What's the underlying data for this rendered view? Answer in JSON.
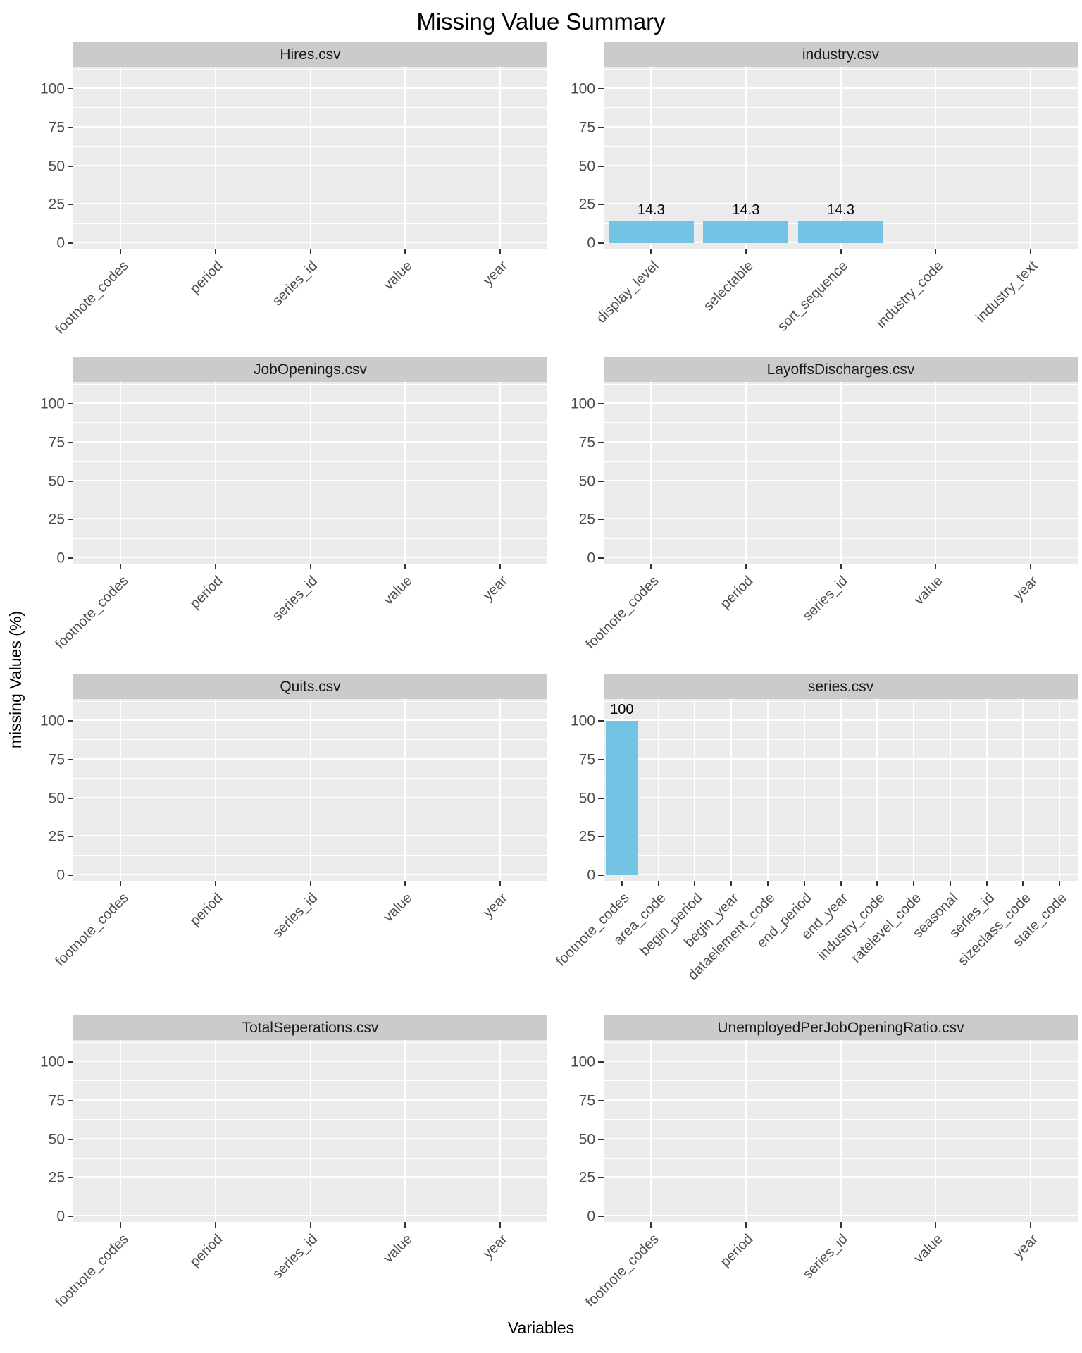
{
  "title": "Missing Value Summary",
  "xlabel": "Variables",
  "ylabel": "missing Values (%)",
  "colors": {
    "bar_fill": "#74C3E4",
    "strip_bg": "#CBCBCB",
    "panel_bg": "#EBEBEB",
    "gridline": "#FFFFFF",
    "axis_text": "#4d4d4d",
    "tick_mark": "#333333",
    "title_text": "#000000"
  },
  "y_ticks": [
    0,
    25,
    50,
    75,
    100
  ],
  "chart_data": {
    "type": "bar",
    "title": "Missing Value Summary",
    "xlabel": "Variables",
    "ylabel": "missing Values (%)",
    "ylim": [
      0,
      100
    ],
    "grid": true,
    "legend": false,
    "facets": [
      {
        "name": "Hires.csv",
        "categories": [
          "footnote_codes",
          "period",
          "series_id",
          "value",
          "year"
        ],
        "values": [
          0,
          0,
          0,
          0,
          0
        ],
        "bar_labels": [
          "",
          "",
          "",
          "",
          ""
        ]
      },
      {
        "name": "industry.csv",
        "categories": [
          "display_level",
          "selectable",
          "sort_sequence",
          "industry_code",
          "industry_text"
        ],
        "values": [
          14.3,
          14.3,
          14.3,
          0,
          0
        ],
        "bar_labels": [
          "14.3",
          "14.3",
          "14.3",
          "",
          ""
        ]
      },
      {
        "name": "JobOpenings.csv",
        "categories": [
          "footnote_codes",
          "period",
          "series_id",
          "value",
          "year"
        ],
        "values": [
          0,
          0,
          0,
          0,
          0
        ],
        "bar_labels": [
          "",
          "",
          "",
          "",
          ""
        ]
      },
      {
        "name": "LayoffsDischarges.csv",
        "categories": [
          "footnote_codes",
          "period",
          "series_id",
          "value",
          "year"
        ],
        "values": [
          0,
          0,
          0,
          0,
          0
        ],
        "bar_labels": [
          "",
          "",
          "",
          "",
          ""
        ]
      },
      {
        "name": "Quits.csv",
        "categories": [
          "footnote_codes",
          "period",
          "series_id",
          "value",
          "year"
        ],
        "values": [
          0,
          0,
          0,
          0,
          0
        ],
        "bar_labels": [
          "",
          "",
          "",
          "",
          ""
        ]
      },
      {
        "name": "series.csv",
        "categories": [
          "footnote_codes",
          "area_code",
          "begin_period",
          "begin_year",
          "dataelement_code",
          "end_period",
          "end_year",
          "industry_code",
          "ratelevel_code",
          "seasonal",
          "series_id",
          "sizeclass_code",
          "state_code"
        ],
        "values": [
          100,
          0,
          0,
          0,
          0,
          0,
          0,
          0,
          0,
          0,
          0,
          0,
          0
        ],
        "bar_labels": [
          "100",
          "",
          "",
          "",
          "",
          "",
          "",
          "",
          "",
          "",
          "",
          "",
          ""
        ]
      },
      {
        "name": "TotalSeperations.csv",
        "categories": [
          "footnote_codes",
          "period",
          "series_id",
          "value",
          "year"
        ],
        "values": [
          0,
          0,
          0,
          0,
          0
        ],
        "bar_labels": [
          "",
          "",
          "",
          "",
          ""
        ]
      },
      {
        "name": "UnemployedPerJobOpeningRatio.csv",
        "categories": [
          "footnote_codes",
          "period",
          "series_id",
          "value",
          "year"
        ],
        "values": [
          0,
          0,
          0,
          0,
          0
        ],
        "bar_labels": [
          "",
          "",
          "",
          "",
          ""
        ]
      }
    ]
  }
}
